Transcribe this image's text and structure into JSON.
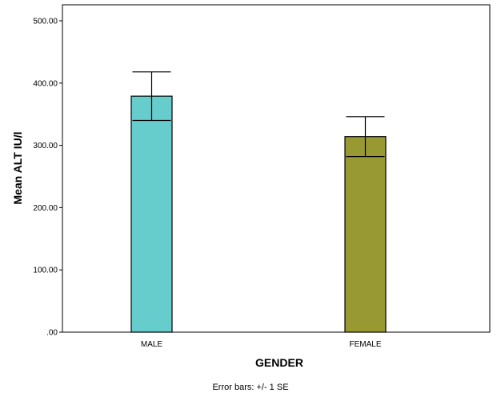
{
  "chart_data": {
    "type": "bar",
    "categories": [
      "MALE",
      "FEMALE"
    ],
    "values": [
      379,
      314
    ],
    "error_low": [
      340,
      282
    ],
    "error_high": [
      418,
      346
    ],
    "colors": [
      "#66CCCC",
      "#999933"
    ],
    "xlabel": "GENDER",
    "ylabel": "Mean ALT IU/l",
    "ylim": [
      0,
      500
    ],
    "yticks": [
      ".00",
      "100.00",
      "200.00",
      "300.00",
      "400.00",
      "500.00"
    ],
    "note": "Error bars: +/- 1 SE",
    "grid": false
  }
}
